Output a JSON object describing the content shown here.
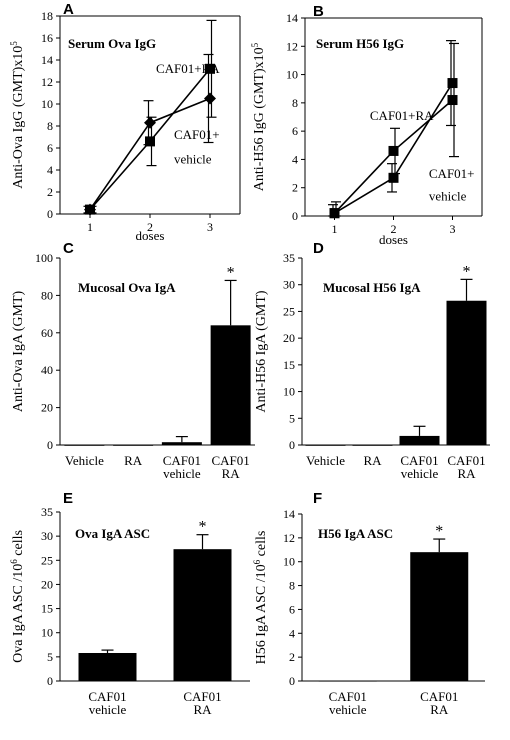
{
  "chart_data": [
    {
      "panel": "A",
      "type": "line",
      "title": "Serum Ova IgG",
      "ylabel": "Anti-Ova IgG (GMT)x10",
      "ylabel_sup": "5",
      "xlabel": "doses",
      "ylim": [
        0,
        18
      ],
      "yticks": [
        0,
        2,
        4,
        6,
        8,
        10,
        12,
        14,
        16,
        18
      ],
      "xlim": [
        0.5,
        3.5
      ],
      "xticks": [
        1,
        2,
        3
      ],
      "series": [
        {
          "name": "CAF01+RA",
          "marker": "square",
          "x": [
            1,
            2,
            3
          ],
          "values": [
            0.4,
            6.6,
            13.2
          ],
          "err": [
            0.3,
            2.2,
            4.4
          ]
        },
        {
          "name": "CAF01+ vehicle",
          "marker": "diamond",
          "x": [
            1,
            2,
            3
          ],
          "values": [
            0.4,
            8.3,
            10.5
          ],
          "err": [
            0.3,
            2.0,
            4.0
          ]
        }
      ],
      "annotations": [
        {
          "text": "CAF01+RA",
          "x": 2.1,
          "y": 12.8
        },
        {
          "text": "CAF01+",
          "x": 2.4,
          "y": 6.8
        },
        {
          "text": "vehicle",
          "x": 2.4,
          "y": 4.6
        }
      ]
    },
    {
      "panel": "B",
      "type": "line",
      "title": "Serum H56 IgG",
      "ylabel": "Anti-H56 IgG (GMT)x10",
      "ylabel_sup": "5",
      "xlabel": "doses",
      "ylim": [
        0,
        14
      ],
      "yticks": [
        0,
        2,
        4,
        6,
        8,
        10,
        12,
        14
      ],
      "xlim": [
        0.5,
        3.5
      ],
      "xticks": [
        1,
        2,
        3
      ],
      "series": [
        {
          "name": "CAF01+RA",
          "marker": "square",
          "x": [
            1,
            2,
            3
          ],
          "values": [
            0.2,
            4.6,
            8.2
          ],
          "err": [
            0.8,
            1.6,
            4.0
          ]
        },
        {
          "name": "CAF01+ vehicle",
          "marker": "square",
          "x": [
            1,
            2,
            3
          ],
          "values": [
            0.2,
            2.7,
            9.4
          ],
          "err": [
            0.6,
            1.0,
            3.0
          ]
        }
      ],
      "annotations": [
        {
          "text": "CAF01+RA",
          "x": 1.6,
          "y": 6.8
        },
        {
          "text": "CAF01+",
          "x": 2.6,
          "y": 2.7
        },
        {
          "text": "vehicle",
          "x": 2.6,
          "y": 1.1
        }
      ]
    },
    {
      "panel": "C",
      "type": "bar",
      "title": "Mucosal Ova IgA",
      "ylabel": "Anti-Ova IgA (GMT)",
      "ylim": [
        0,
        100
      ],
      "yticks": [
        0,
        20,
        40,
        60,
        80,
        100
      ],
      "categories": [
        [
          "Vehicle"
        ],
        [
          "RA"
        ],
        [
          "CAF01",
          "vehicle"
        ],
        [
          "CAF01",
          "RA"
        ]
      ],
      "values": [
        0,
        0,
        1.5,
        64
      ],
      "err": [
        0,
        0,
        3,
        24
      ],
      "significance": [
        "",
        "",
        "",
        "*"
      ]
    },
    {
      "panel": "D",
      "type": "bar",
      "title": "Mucosal H56 IgA",
      "ylabel": "Anti-H56 IgA (GMT)",
      "ylim": [
        0,
        35
      ],
      "yticks": [
        0,
        5,
        10,
        15,
        20,
        25,
        30,
        35
      ],
      "categories": [
        [
          "Vehicle"
        ],
        [
          "RA"
        ],
        [
          "CAF01",
          "vehicle"
        ],
        [
          "CAF01",
          "RA"
        ]
      ],
      "values": [
        0,
        0,
        1.7,
        27
      ],
      "err": [
        0,
        0,
        1.8,
        4
      ],
      "significance": [
        "",
        "",
        "",
        "*"
      ]
    },
    {
      "panel": "E",
      "type": "bar",
      "title": "Ova IgA ASC",
      "ylabel": "Ova IgA ASC /10",
      "ylabel_sup": "6",
      "ylabel_suffix": " cells",
      "ylim": [
        0,
        35
      ],
      "yticks": [
        0,
        5,
        10,
        15,
        20,
        25,
        30,
        35
      ],
      "categories": [
        [
          "CAF01",
          "vehicle"
        ],
        [
          "CAF01",
          "RA"
        ]
      ],
      "values": [
        5.8,
        27.3
      ],
      "err": [
        0.6,
        3.0
      ],
      "significance": [
        "",
        "*"
      ]
    },
    {
      "panel": "F",
      "type": "bar",
      "title": "H56 IgA ASC",
      "ylabel": "H56 IgA ASC /10",
      "ylabel_sup": "6",
      "ylabel_suffix": " cells",
      "ylim": [
        0,
        14
      ],
      "yticks": [
        0,
        2,
        4,
        6,
        8,
        10,
        12,
        14
      ],
      "categories": [
        [
          "CAF01",
          "vehicle"
        ],
        [
          "CAF01",
          "RA"
        ]
      ],
      "values": [
        0.02,
        10.8
      ],
      "err": [
        0,
        1.1
      ],
      "significance": [
        "",
        "*"
      ]
    }
  ]
}
